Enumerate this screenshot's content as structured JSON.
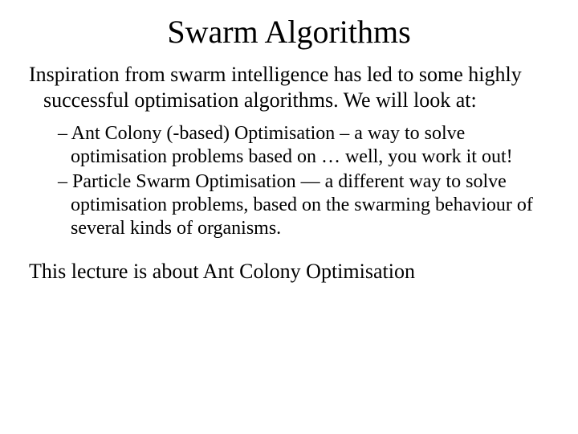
{
  "title": "Swarm Algorithms",
  "intro": "Inspiration from swarm intelligence has led to some highly successful optimisation algorithms. We will look at:",
  "bullets": [
    "– Ant Colony (-based) Optimisation – a way to solve optimisation problems based on … well, you work it out!",
    "– Particle Swarm Optimisation — a   different way to solve optimisation problems, based on the swarming behaviour of several kinds of organisms."
  ],
  "closing": "This lecture is about Ant Colony Optimisation",
  "colors": {
    "background": "#ffffff",
    "text": "#000000"
  },
  "typography": {
    "font_family": "Times New Roman",
    "title_fontsize_pt": 40,
    "body_fontsize_pt": 26,
    "bullet_fontsize_pt": 24
  }
}
